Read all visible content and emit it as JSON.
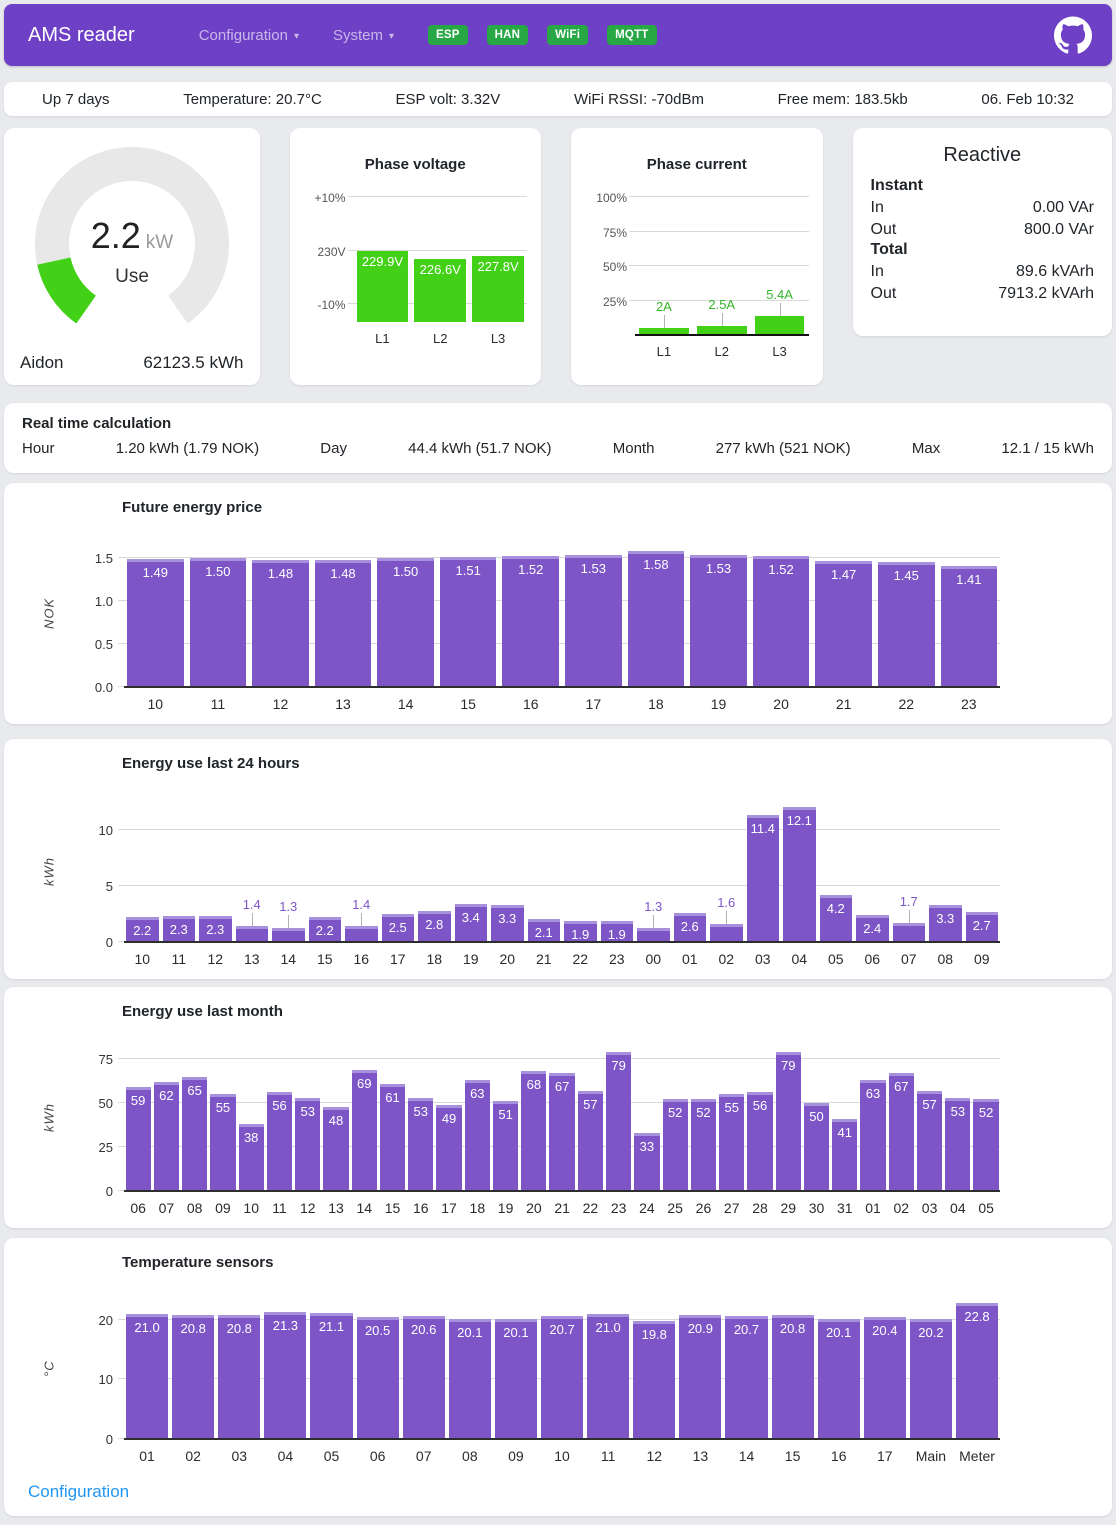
{
  "colors": {
    "header_purple": "#6e40c6",
    "badge_green": "#28a745",
    "bar_purple": "#7d55c7",
    "bar_purple_cap": "#a891dc",
    "bar_green": "#43d117",
    "gauge_track": "#e8e8e8",
    "link_blue": "#2196f3",
    "current_label_green": "#35b52a"
  },
  "header": {
    "brand": "AMS reader",
    "nav": [
      {
        "label": "Configuration"
      },
      {
        "label": "System"
      }
    ],
    "badges": [
      "ESP",
      "HAN",
      "WiFi",
      "MQTT"
    ]
  },
  "status_bar": {
    "items": [
      "Up 7 days",
      "Temperature: 20.7°C",
      "ESP volt: 3.32V",
      "WiFi RSSI: -70dBm",
      "Free mem: 183.5kb",
      "06. Feb 10:32"
    ]
  },
  "gauge": {
    "value": "2.2",
    "unit": "kW",
    "label": "Use",
    "meter_name": "Aidon",
    "total": "62123.5 kWh",
    "percent": 14.7
  },
  "reactive": {
    "title": "Reactive",
    "sections": [
      {
        "label": "Instant",
        "rows": [
          {
            "label": "In",
            "value": "0.00 VAr"
          },
          {
            "label": "Out",
            "value": "800.0 VAr"
          }
        ]
      },
      {
        "label": "Total",
        "rows": [
          {
            "label": "In",
            "value": "89.6 kVArh"
          },
          {
            "label": "Out",
            "value": "7913.2 kVArh"
          }
        ]
      }
    ]
  },
  "realtime": {
    "title": "Real time calculation",
    "items": [
      {
        "label": "Hour",
        "value": "1.20 kWh (1.79 NOK)"
      },
      {
        "label": "Day",
        "value": "44.4 kWh (51.7 NOK)"
      },
      {
        "label": "Month",
        "value": "277 kWh (521 NOK)"
      },
      {
        "label": "Max",
        "value": "12.1 / 15 kWh"
      }
    ]
  },
  "footer": {
    "link": "Configuration"
  },
  "chart_data": [
    {
      "id": "phase-voltage",
      "type": "bar",
      "title": "Phase voltage",
      "categories": [
        "L1",
        "L2",
        "L3"
      ],
      "values": [
        229.9,
        226.6,
        227.8
      ],
      "value_labels": [
        "229.9V",
        "226.6V",
        "227.8V"
      ],
      "yticks": [
        {
          "value": 253,
          "label": "+10%"
        },
        {
          "value": 230,
          "label": "230V"
        },
        {
          "value": 207,
          "label": "-10%"
        }
      ],
      "layout": {
        "height": 125,
        "ymin": 199.5,
        "ymax": 253,
        "bar_color": "#43d117",
        "gap": 3,
        "label_mode": "inside",
        "axis": false
      }
    },
    {
      "id": "phase-current",
      "type": "bar",
      "title": "Phase current",
      "categories": [
        "L1",
        "L2",
        "L3"
      ],
      "values": [
        2,
        2.5,
        5.4
      ],
      "value_labels": [
        "2A",
        "2.5A",
        "5.4A"
      ],
      "yticks": [
        {
          "value": 40,
          "label": "100%"
        },
        {
          "value": 30,
          "label": "75%"
        },
        {
          "value": 20,
          "label": "50%"
        },
        {
          "value": 10,
          "label": "25%"
        }
      ],
      "layout": {
        "height": 138,
        "ymin": 0,
        "ymax": 40,
        "bar_color": "#43d117",
        "gap": 4,
        "label_mode": "outside",
        "out_color": "#35b52a",
        "axis": true,
        "axis_color": "#111"
      }
    },
    {
      "id": "future-energy-price",
      "type": "bar",
      "title": "Future energy price",
      "ylabel": "NOK",
      "categories": [
        "10",
        "11",
        "12",
        "13",
        "14",
        "15",
        "16",
        "17",
        "18",
        "19",
        "20",
        "21",
        "22",
        "23"
      ],
      "values": [
        1.49,
        1.5,
        1.48,
        1.48,
        1.5,
        1.51,
        1.52,
        1.53,
        1.58,
        1.53,
        1.52,
        1.47,
        1.45,
        1.41
      ],
      "value_labels": [
        "1.49",
        "1.50",
        "1.48",
        "1.48",
        "1.50",
        "1.51",
        "1.52",
        "1.53",
        "1.58",
        "1.53",
        "1.52",
        "1.47",
        "1.45",
        "1.41"
      ],
      "yticks": [
        {
          "value": 0,
          "label": "0.0"
        },
        {
          "value": 0.5,
          "label": "0.5"
        },
        {
          "value": 1,
          "label": "1.0"
        },
        {
          "value": 1.5,
          "label": "1.5"
        }
      ],
      "layout": {
        "height": 147,
        "ymin": 0,
        "ymax": 1.71,
        "bar_color": "#7d55c7",
        "cap_color": "#a891dc",
        "gap": 3,
        "label_mode": "inside",
        "axis": true
      }
    },
    {
      "id": "energy-last-24h",
      "type": "bar",
      "title": "Energy use last 24 hours",
      "ylabel": "kWh",
      "categories": [
        "10",
        "11",
        "12",
        "13",
        "14",
        "15",
        "16",
        "17",
        "18",
        "19",
        "20",
        "21",
        "22",
        "23",
        "00",
        "01",
        "02",
        "03",
        "04",
        "05",
        "06",
        "07",
        "08",
        "09"
      ],
      "values": [
        2.2,
        2.3,
        2.3,
        1.4,
        1.3,
        2.2,
        1.4,
        2.5,
        2.8,
        3.4,
        3.3,
        2.1,
        1.9,
        1.9,
        1.3,
        2.6,
        1.6,
        11.4,
        12.1,
        4.2,
        2.4,
        1.7,
        3.3,
        2.7
      ],
      "value_labels": [
        "2.2",
        "2.3",
        "2.3",
        "1.4",
        "1.3",
        "2.2",
        "1.4",
        "2.5",
        "2.8",
        "3.4",
        "3.3",
        "2.1",
        "1.9",
        "1.9",
        "1.3",
        "2.6",
        "1.6",
        "11.4",
        "12.1",
        "4.2",
        "2.4",
        "1.7",
        "3.3",
        "2.7"
      ],
      "yticks": [
        {
          "value": 0,
          "label": "0"
        },
        {
          "value": 5,
          "label": "5"
        },
        {
          "value": 10,
          "label": "10"
        }
      ],
      "layout": {
        "height": 140,
        "ymin": 0,
        "ymax": 12.55,
        "bar_color": "#7d55c7",
        "cap_color": "#a891dc",
        "gap": 2,
        "label_mode": "auto",
        "inside_min": 20,
        "out_color": "#7d55c7",
        "axis": true
      }
    },
    {
      "id": "energy-last-month",
      "type": "bar",
      "title": "Energy use last month",
      "ylabel": "kWh",
      "categories": [
        "06",
        "07",
        "08",
        "09",
        "10",
        "11",
        "12",
        "13",
        "14",
        "15",
        "16",
        "17",
        "18",
        "19",
        "20",
        "21",
        "22",
        "23",
        "24",
        "25",
        "26",
        "27",
        "28",
        "29",
        "30",
        "31",
        "01",
        "02",
        "03",
        "04",
        "05"
      ],
      "values": [
        59,
        62,
        65,
        55,
        38,
        56,
        53,
        48,
        69,
        61,
        53,
        49,
        63,
        51,
        68,
        67,
        57,
        79,
        33,
        52,
        52,
        55,
        56,
        79,
        50,
        41,
        63,
        67,
        57,
        53,
        52
      ],
      "value_labels": [
        "59",
        "62",
        "65",
        "55",
        "38",
        "56",
        "53",
        "48",
        "69",
        "61",
        "53",
        "49",
        "63",
        "51",
        "68",
        "67",
        "57",
        "79",
        "33",
        "52",
        "52",
        "55",
        "56",
        "79",
        "50",
        "41",
        "63",
        "67",
        "57",
        "53",
        "52"
      ],
      "yticks": [
        {
          "value": 0,
          "label": "0"
        },
        {
          "value": 25,
          "label": "25"
        },
        {
          "value": 50,
          "label": "50"
        },
        {
          "value": 75,
          "label": "75"
        }
      ],
      "layout": {
        "height": 147,
        "ymin": 0,
        "ymax": 83.5,
        "bar_color": "#7d55c7",
        "cap_color": "#a891dc",
        "gap": 1.5,
        "label_mode": "inside",
        "axis": true
      }
    },
    {
      "id": "temperature-sensors",
      "type": "bar",
      "title": "Temperature sensors",
      "ylabel": "°C",
      "categories": [
        "01",
        "02",
        "03",
        "04",
        "05",
        "06",
        "07",
        "08",
        "09",
        "10",
        "11",
        "12",
        "13",
        "14",
        "15",
        "16",
        "17",
        "Main",
        "Meter"
      ],
      "values": [
        21.0,
        20.8,
        20.8,
        21.3,
        21.1,
        20.5,
        20.6,
        20.1,
        20.1,
        20.7,
        21.0,
        19.8,
        20.9,
        20.7,
        20.8,
        20.1,
        20.4,
        20.2,
        22.8
      ],
      "value_labels": [
        "21.0",
        "20.8",
        "20.8",
        "21.3",
        "21.1",
        "20.5",
        "20.6",
        "20.1",
        "20.1",
        "20.7",
        "21.0",
        "19.8",
        "20.9",
        "20.7",
        "20.8",
        "20.1",
        "20.4",
        "20.2",
        "22.8"
      ],
      "yticks": [
        {
          "value": 0,
          "label": "0"
        },
        {
          "value": 10,
          "label": "10"
        },
        {
          "value": 20,
          "label": "20"
        }
      ],
      "layout": {
        "height": 140,
        "ymin": 0,
        "ymax": 23.5,
        "bar_color": "#7d55c7",
        "cap_color": "#a891dc",
        "gap": 2,
        "label_mode": "inside",
        "axis": true
      }
    }
  ]
}
